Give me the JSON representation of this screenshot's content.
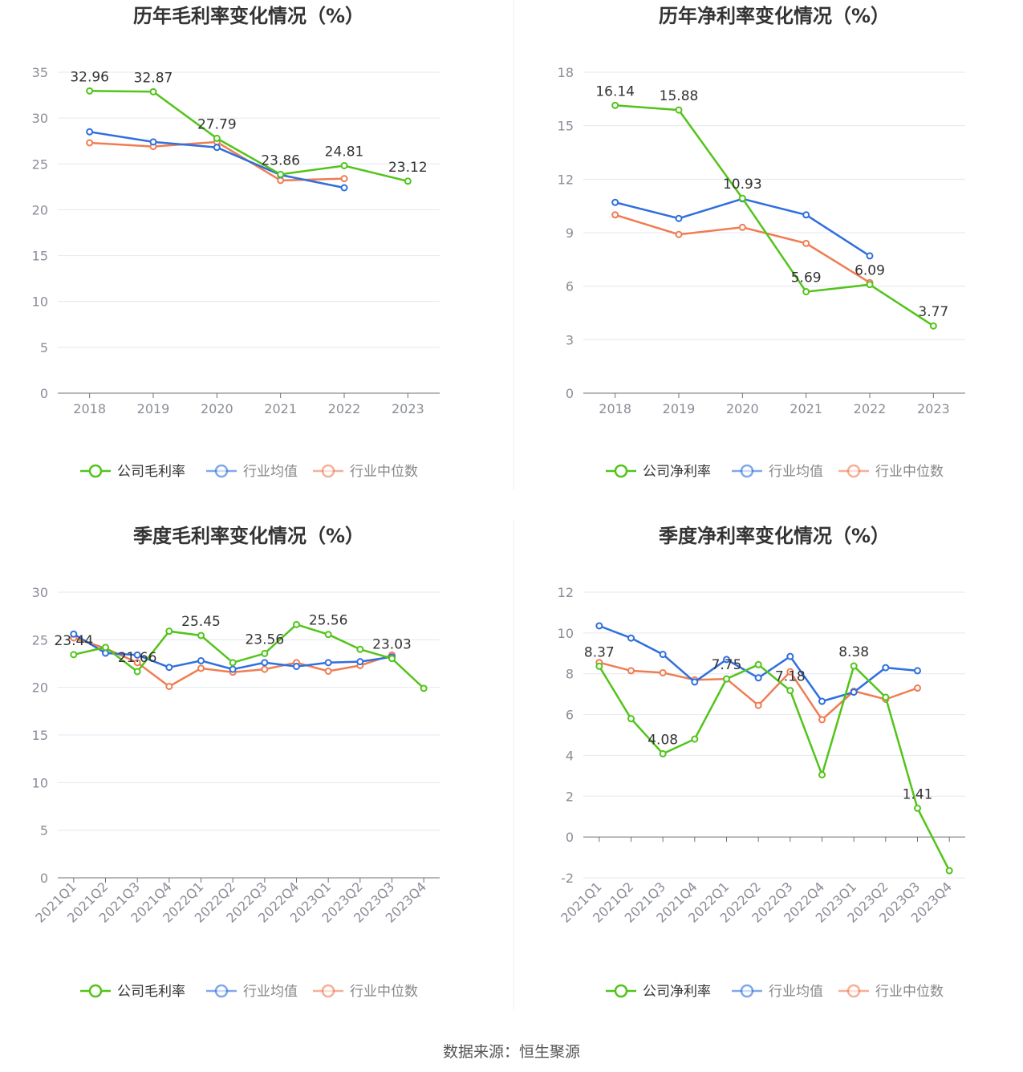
{
  "colors": {
    "company": "#52c41a",
    "avg": "#2f6fde",
    "median": "#f07c53",
    "grid": "#e3e7f0",
    "axis": "#6e7079",
    "tick": "#8a8d96",
    "title": "#333333",
    "label": "#333333"
  },
  "source_label": "数据来源：恒生聚源",
  "chart_data": [
    {
      "type": "line",
      "title": "历年毛利率变化情况（%）",
      "categories": [
        "2018",
        "2019",
        "2020",
        "2021",
        "2022",
        "2023"
      ],
      "ylim": [
        0,
        35
      ],
      "yticks": [
        0,
        5,
        10,
        15,
        20,
        25,
        30,
        35
      ],
      "ytick_labels": [
        "0",
        "5",
        "10",
        "15",
        "20",
        "25",
        "30",
        "35"
      ],
      "legend_position": "bottom",
      "series": [
        {
          "name": "公司毛利率",
          "key": "company",
          "values": [
            32.96,
            32.87,
            27.79,
            23.86,
            24.81,
            23.12
          ],
          "labels": [
            "32.96",
            "32.87",
            "27.79",
            "23.86",
            "24.81",
            "23.12"
          ]
        },
        {
          "name": "行业均值",
          "key": "avg",
          "values": [
            28.5,
            27.4,
            26.8,
            23.8,
            22.4,
            null
          ]
        },
        {
          "name": "行业中位数",
          "key": "median",
          "values": [
            27.3,
            26.9,
            27.4,
            23.2,
            23.4,
            null
          ]
        }
      ]
    },
    {
      "type": "line",
      "title": "历年净利率变化情况（%）",
      "categories": [
        "2018",
        "2019",
        "2020",
        "2021",
        "2022",
        "2023"
      ],
      "ylim": [
        0,
        18
      ],
      "yticks": [
        0,
        3,
        6,
        9,
        12,
        15,
        18
      ],
      "ytick_labels": [
        "0",
        "3",
        "6",
        "9",
        "12",
        "15",
        "18"
      ],
      "legend_position": "bottom",
      "series": [
        {
          "name": "公司净利率",
          "key": "company",
          "values": [
            16.14,
            15.88,
            10.93,
            5.69,
            6.09,
            3.77
          ],
          "labels": [
            "16.14",
            "15.88",
            "10.93",
            "5.69",
            "6.09",
            "3.77"
          ]
        },
        {
          "name": "行业均值",
          "key": "avg",
          "values": [
            10.7,
            9.8,
            10.9,
            10.0,
            7.7,
            null
          ]
        },
        {
          "name": "行业中位数",
          "key": "median",
          "values": [
            10.0,
            8.9,
            9.3,
            8.4,
            6.2,
            null
          ]
        }
      ]
    },
    {
      "type": "line",
      "title": "季度毛利率变化情况（%）",
      "categories": [
        "2021Q1",
        "2021Q2",
        "2021Q3",
        "2021Q4",
        "2022Q1",
        "2022Q2",
        "2022Q3",
        "2022Q4",
        "2023Q1",
        "2023Q2",
        "2023Q3",
        "2023Q4"
      ],
      "ylim": [
        0,
        30
      ],
      "yticks": [
        0,
        5,
        10,
        15,
        20,
        25,
        30
      ],
      "ytick_labels": [
        "0",
        "5",
        "10",
        "15",
        "20",
        "25",
        "30"
      ],
      "legend_position": "bottom",
      "series": [
        {
          "name": "公司毛利率",
          "key": "company",
          "values": [
            23.44,
            24.2,
            21.66,
            25.9,
            25.45,
            22.6,
            23.56,
            26.6,
            25.56,
            24.0,
            23.03,
            19.9
          ],
          "labels": [
            "23.44",
            null,
            "21.66",
            null,
            "25.45",
            null,
            "23.56",
            null,
            "25.56",
            null,
            "23.03",
            null
          ]
        },
        {
          "name": "行业均值",
          "key": "avg",
          "values": [
            25.6,
            23.6,
            23.4,
            22.1,
            22.8,
            21.9,
            22.6,
            22.2,
            22.6,
            22.7,
            23.2,
            null
          ]
        },
        {
          "name": "行业中位数",
          "key": "median",
          "values": [
            25.2,
            24.1,
            22.6,
            20.1,
            22.0,
            21.6,
            21.9,
            22.6,
            21.7,
            22.3,
            23.4,
            null
          ]
        }
      ]
    },
    {
      "type": "line",
      "title": "季度净利率变化情况（%）",
      "categories": [
        "2021Q1",
        "2021Q2",
        "2021Q3",
        "2021Q4",
        "2022Q1",
        "2022Q2",
        "2022Q3",
        "2022Q4",
        "2023Q1",
        "2023Q2",
        "2023Q3",
        "2023Q4"
      ],
      "ylim": [
        -2,
        12
      ],
      "yticks": [
        -2,
        0,
        2,
        4,
        6,
        8,
        10,
        12
      ],
      "ytick_labels": [
        "-2",
        "0",
        "2",
        "4",
        "6",
        "8",
        "10",
        "12"
      ],
      "legend_position": "bottom",
      "series": [
        {
          "name": "公司净利率",
          "key": "company",
          "values": [
            8.37,
            5.8,
            4.08,
            4.8,
            7.75,
            8.45,
            7.18,
            3.05,
            8.38,
            6.85,
            1.41,
            -1.65
          ],
          "labels": [
            "8.37",
            null,
            "4.08",
            null,
            "7.75",
            null,
            "7.18",
            null,
            "8.38",
            null,
            "1.41",
            null
          ]
        },
        {
          "name": "行业均值",
          "key": "avg",
          "values": [
            10.35,
            9.75,
            8.95,
            7.6,
            8.7,
            7.8,
            8.85,
            6.65,
            7.1,
            8.3,
            8.15,
            null
          ]
        },
        {
          "name": "行业中位数",
          "key": "median",
          "values": [
            8.55,
            8.15,
            8.05,
            7.7,
            7.75,
            6.45,
            8.1,
            5.75,
            7.15,
            6.75,
            7.3,
            null
          ]
        }
      ]
    }
  ]
}
